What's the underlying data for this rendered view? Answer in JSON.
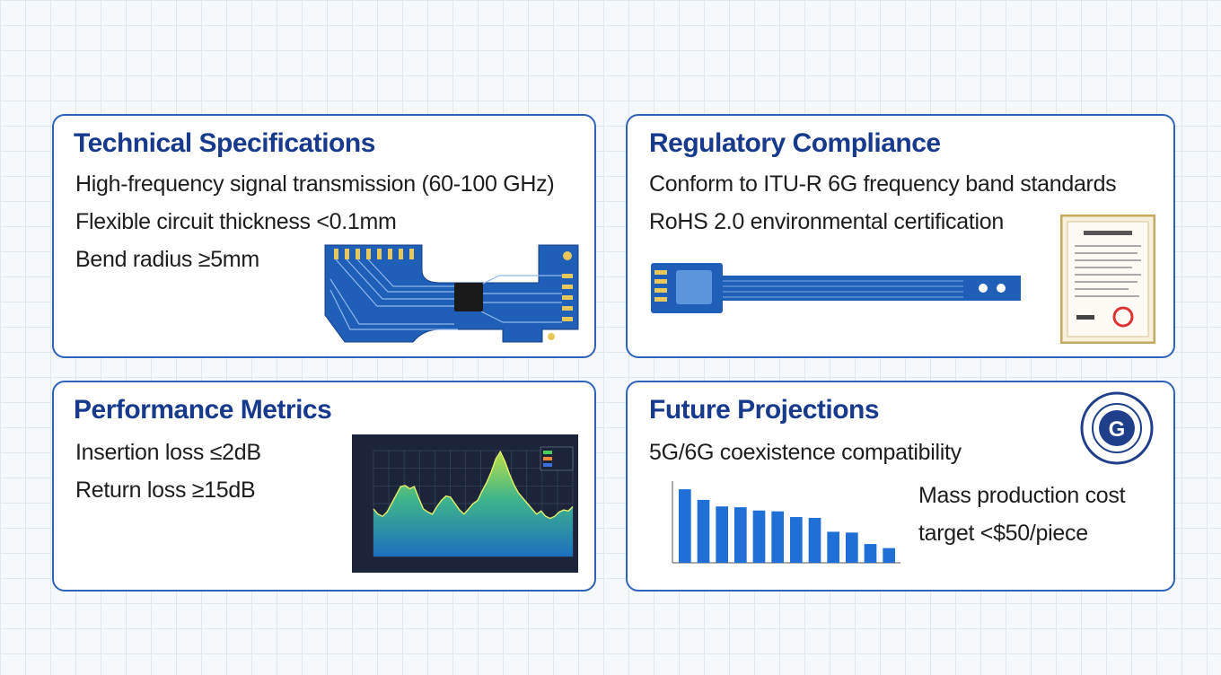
{
  "cards": {
    "technical": {
      "title": "Technical Specifications",
      "lines": [
        "High-frequency signal transmission (60-100 GHz)",
        "Flexible circuit thickness <0.1mm",
        "Bend radius ≥5mm"
      ]
    },
    "regulatory": {
      "title": "Regulatory Compliance",
      "lines": [
        "Conform to ITU-R 6G frequency band standards",
        "RoHS 2.0 environmental certification"
      ]
    },
    "performance": {
      "title": "Performance Metrics",
      "lines": [
        "Insertion loss ≤2dB",
        "Return loss ≥15dB"
      ]
    },
    "future": {
      "title": "Future Projections",
      "lines": [
        "5G/6G coexistence compatibility",
        "Mass production cost",
        "target <$50/piece"
      ]
    }
  },
  "colors": {
    "title": "#173a8c",
    "border": "#2f63b8",
    "pcb": "#1f5fb8",
    "bar": "#1f6fd6",
    "chart_bg": "#1b2438"
  },
  "chart_data": [
    {
      "type": "area",
      "series": [
        {
          "values": [
            45,
            40,
            38,
            42,
            50,
            58,
            66,
            67,
            64,
            66,
            55,
            45,
            42,
            40,
            47,
            53,
            57,
            56,
            50,
            44,
            40,
            45,
            50,
            53,
            62,
            70,
            80,
            92,
            99,
            90,
            78,
            68,
            60,
            55,
            50,
            45,
            40,
            43,
            38,
            36,
            38,
            42,
            44,
            43,
            47
          ]
        }
      ],
      "legend": "top-right"
    },
    {
      "type": "bar",
      "values": [
        90,
        77,
        69,
        68,
        64,
        63,
        56,
        55,
        38,
        37,
        23,
        18
      ],
      "ylim": [
        0,
        100
      ]
    }
  ],
  "icons": [
    "pcb-chip-image",
    "flex-cable-image",
    "certificate-image",
    "6g-seal-logo"
  ]
}
